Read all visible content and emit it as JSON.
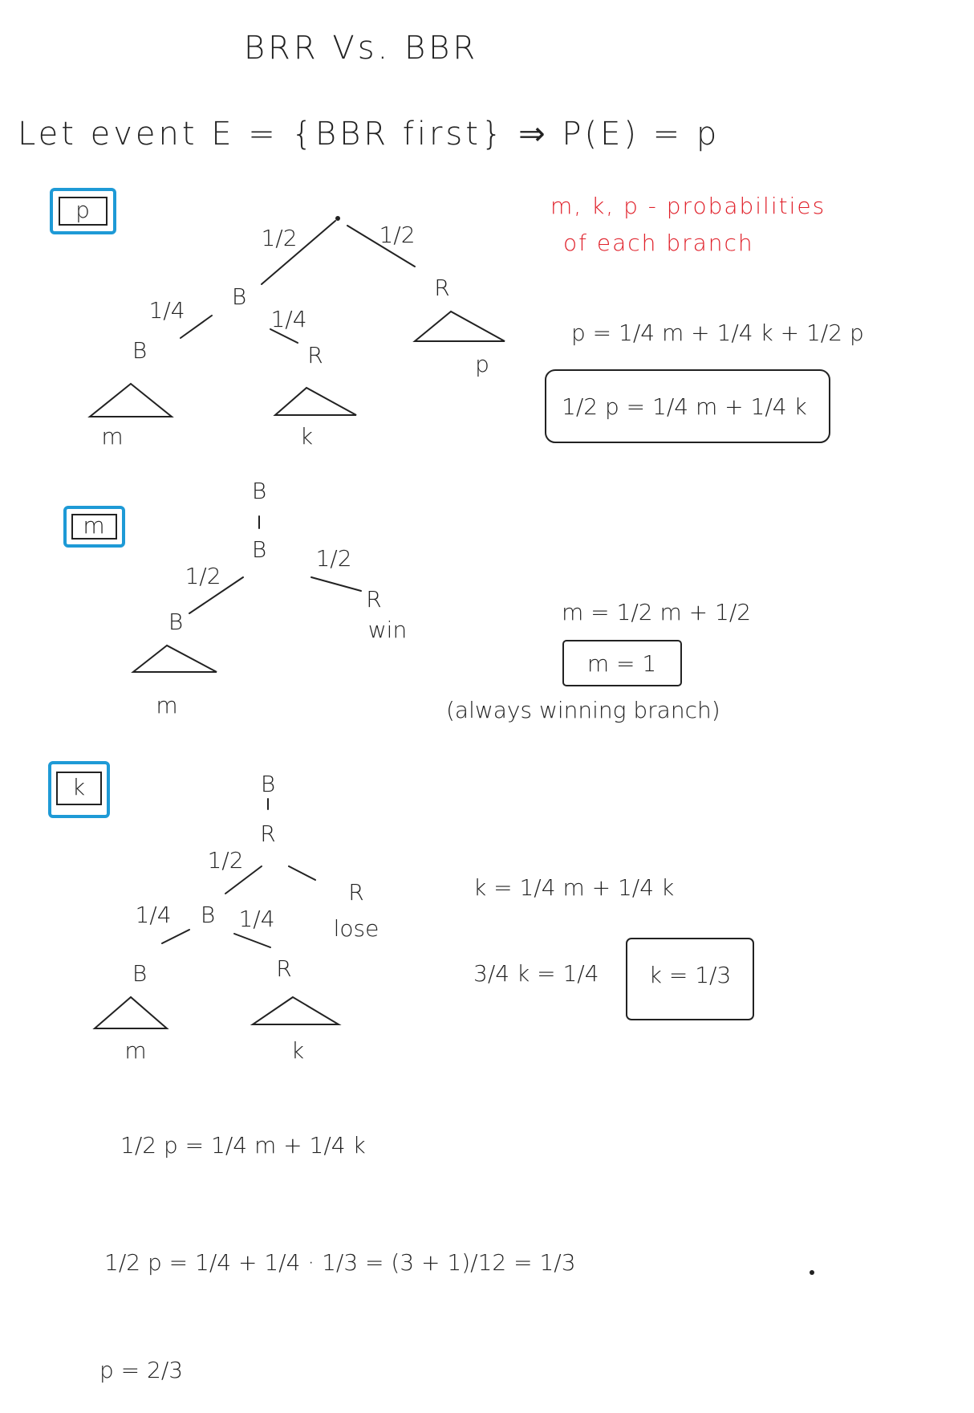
{
  "title": "BRR Vs. BBR",
  "definition": "Let event E = {BBR first} ⇒ P(E) = p",
  "note": [
    "m, k, p - probabilities",
    "of each branch"
  ],
  "sections": [
    {
      "label": "p",
      "nodes": [
        "B",
        "R",
        "B",
        "R"
      ],
      "edges": [
        "1/2",
        "1/2",
        "1/4",
        "1/4"
      ],
      "leaves": [
        "m",
        "k",
        "p"
      ],
      "equations": [
        "p = 1/4 m + 1/4 k + 1/2 p",
        "1/2 p = 1/4 m + 1/4 k"
      ]
    },
    {
      "label": "m",
      "nodes": [
        "B",
        "B",
        "B",
        "R"
      ],
      "outcome": "win",
      "edges": [
        "1/2",
        "1/2"
      ],
      "leaves": [
        "m"
      ],
      "equations": [
        "m = 1/2 m + 1/2",
        "m = 1"
      ],
      "remark": "(always winning branch)"
    },
    {
      "label": "k",
      "nodes": [
        "B",
        "R",
        "B",
        "R",
        "B",
        "R"
      ],
      "outcome": "lose",
      "edges": [
        "1/2",
        "1/4",
        "1/4"
      ],
      "leaves": [
        "m",
        "k"
      ],
      "equations": [
        "k = 1/4 m + 1/4 k",
        "3/4 k = 1/4",
        "k = 1/3"
      ]
    }
  ],
  "final": [
    "1/2 p = 1/4 m + 1/4 k",
    "1/2 p = 1/4 + 1/4 · 1/3 = (3 + 1)/12 = 1/3",
    "p = 2/3"
  ]
}
